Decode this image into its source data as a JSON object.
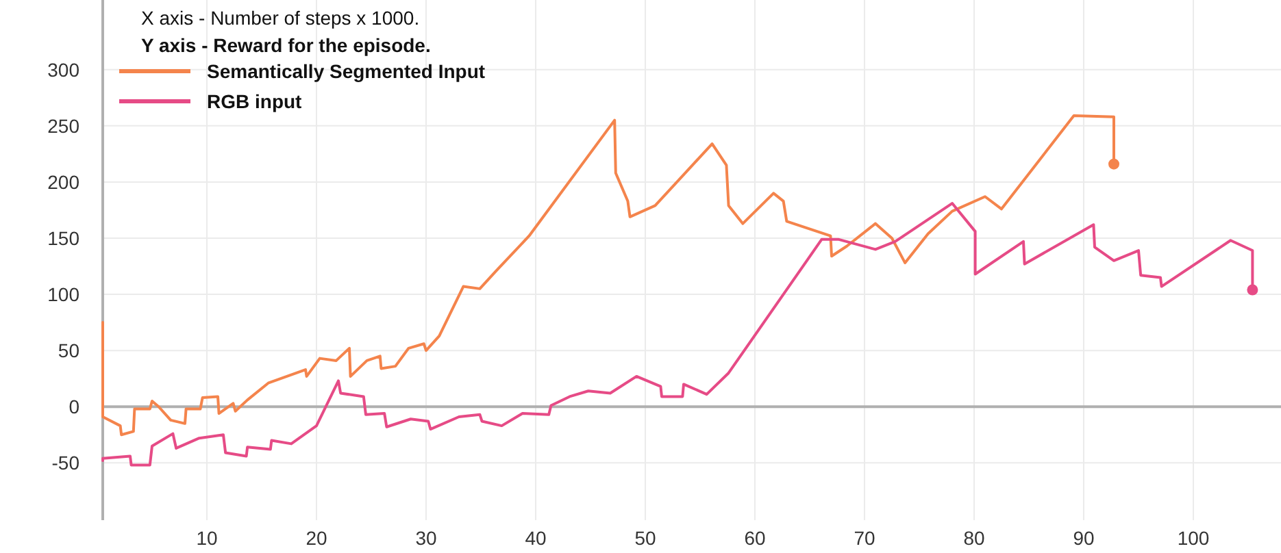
{
  "chart_data": {
    "type": "line",
    "annotations": [
      "X axis - Number of steps x 1000.",
      "Y axis - Reward for the episode."
    ],
    "xlim": [
      0.5,
      108
    ],
    "xticks": [
      10,
      20,
      30,
      40,
      50,
      60,
      70,
      80,
      90,
      100
    ],
    "ylim": [
      -101,
      362
    ],
    "yticks": [
      -50,
      0,
      50,
      100,
      150,
      200,
      250,
      300
    ],
    "grid": true,
    "legend": "top left",
    "ref_lines": [
      {
        "axis": "y",
        "value": 0,
        "color": "#b0b0b0"
      }
    ],
    "series": [
      {
        "name": "Semantically Segmented Input",
        "color": "#f4844c",
        "x": [
          0.5,
          0.5,
          2.1,
          2.2,
          3.3,
          3.4,
          4.8,
          5,
          5.6,
          6.7,
          8,
          8.1,
          9.4,
          9.6,
          11,
          11.1,
          12.4,
          12.6,
          13.7,
          15.6,
          19,
          19.1,
          20.3,
          21.8,
          23,
          23.1,
          24.6,
          25.8,
          25.9,
          27.2,
          28.4,
          29.8,
          30,
          31.2,
          33.4,
          34.9,
          36.4,
          39.4,
          47.2,
          47.3,
          48.4,
          48.6,
          50.9,
          56.1,
          57.4,
          57.6,
          58.9,
          61.7,
          62.6,
          62.9,
          66.9,
          67,
          68.4,
          71,
          72.5,
          73.7,
          75.8,
          78,
          81,
          82.5,
          89.1,
          92.75,
          92.75
        ],
        "values": [
          75,
          -9,
          -17,
          -25,
          -22,
          -2,
          -2,
          5,
          0,
          -12,
          -15,
          -2,
          -2,
          8,
          9,
          -6,
          3,
          -4,
          6,
          21,
          33,
          27,
          43,
          41,
          52,
          27,
          41,
          45,
          34,
          36,
          52,
          56,
          50,
          63,
          107,
          105,
          121,
          152,
          255,
          208,
          183,
          169,
          179,
          234,
          215,
          179,
          163,
          190,
          183,
          165,
          152,
          134,
          143,
          163,
          150,
          128,
          154,
          174,
          187,
          176,
          259,
          258,
          216
        ]
      },
      {
        "name": "RGB input",
        "color": "#e64b86",
        "x": [
          0.5,
          0.5,
          3,
          3.1,
          4.8,
          5,
          6.9,
          7.2,
          9.3,
          11.5,
          11.7,
          13.6,
          13.7,
          15.8,
          15.9,
          17.7,
          20,
          22,
          22.2,
          24.3,
          24.5,
          26.2,
          26.4,
          28.6,
          30.2,
          30.4,
          33,
          34.9,
          35.1,
          36.9,
          38.8,
          41.2,
          41.4,
          43.1,
          44.8,
          46.8,
          49.2,
          51.4,
          51.5,
          53.4,
          53.5,
          55.6,
          57.6,
          66.1,
          67.6,
          71,
          72.8,
          78,
          80.1,
          80.1,
          84.5,
          84.6,
          90.9,
          91,
          92.75,
          95,
          95.2,
          97,
          97.1,
          103.4,
          105.4,
          105.4
        ],
        "values": [
          -48,
          -46,
          -44,
          -52,
          -52,
          -35,
          -24,
          -37,
          -28,
          -25,
          -41,
          -44,
          -36,
          -38,
          -30,
          -33,
          -17,
          23,
          12,
          9,
          -7,
          -6,
          -18,
          -11,
          -13,
          -20,
          -9,
          -7,
          -13,
          -17,
          -6,
          -7,
          1,
          9,
          14,
          12,
          27,
          18,
          9,
          9,
          20,
          11,
          30,
          149,
          149,
          140,
          147,
          181,
          156,
          118,
          147,
          127,
          162,
          142,
          130,
          139,
          117,
          115,
          107,
          148,
          139,
          104
        ]
      },
      {
        "type": "scatter",
        "color": "#f4844c",
        "x": [
          92.75
        ],
        "values": [
          216
        ],
        "marker": "circle"
      },
      {
        "type": "scatter",
        "color": "#e64b86",
        "x": [
          105.4
        ],
        "values": [
          104
        ],
        "marker": "circle"
      }
    ]
  }
}
